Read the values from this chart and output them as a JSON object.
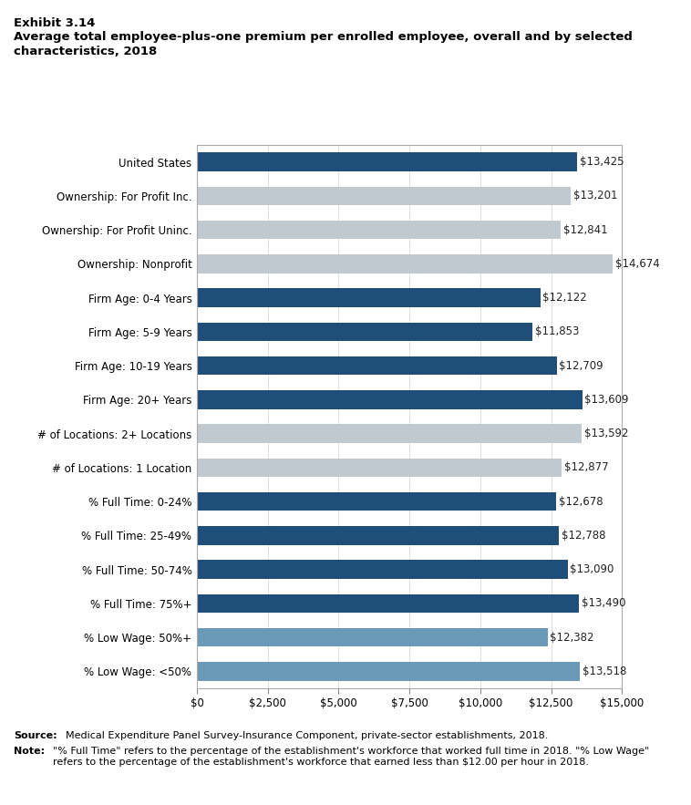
{
  "title_line1": "Exhibit 3.14",
  "title_line2": "Average total employee-plus-one premium per enrolled employee, overall and by selected\ncharacteristics, 2018",
  "categories": [
    "United States",
    "Ownership: For Profit Inc.",
    "Ownership: For Profit Uninc.",
    "Ownership: Nonprofit",
    "Firm Age: 0-4 Years",
    "Firm Age: 5-9 Years",
    "Firm Age: 10-19 Years",
    "Firm Age: 20+ Years",
    "# of Locations: 2+ Locations",
    "# of Locations: 1 Location",
    "% Full Time: 0-24%",
    "% Full Time: 25-49%",
    "% Full Time: 50-74%",
    "% Full Time: 75%+",
    "% Low Wage: 50%+",
    "% Low Wage: <50%"
  ],
  "values": [
    13425,
    13201,
    12841,
    14674,
    12122,
    11853,
    12709,
    13609,
    13592,
    12877,
    12678,
    12788,
    13090,
    13490,
    12382,
    13518
  ],
  "colors": [
    "#1f4e79",
    "#c0c8d0",
    "#c0c8d0",
    "#c0c8d0",
    "#1f4e79",
    "#1f4e79",
    "#1f4e79",
    "#1f4e79",
    "#c0c8d0",
    "#c0c8d0",
    "#1f4e79",
    "#1f4e79",
    "#1f4e79",
    "#1f4e79",
    "#6b9ab8",
    "#6b9ab8"
  ],
  "xlim": [
    0,
    15000
  ],
  "xticks": [
    0,
    2500,
    5000,
    7500,
    10000,
    12500,
    15000
  ],
  "xticklabels": [
    "$0",
    "$2,500",
    "$5,000",
    "$7,500",
    "$10,000",
    "$12,500",
    "$15,000"
  ],
  "bar_height": 0.55,
  "background_color": "#ffffff",
  "label_fontsize": 8.5,
  "value_fontsize": 8.5
}
